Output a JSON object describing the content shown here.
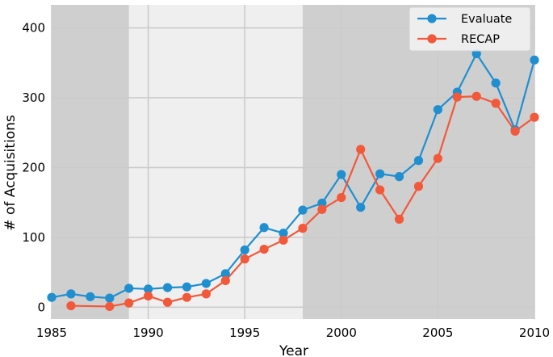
{
  "chart_data": {
    "type": "line",
    "xlabel": "Year",
    "ylabel": "# of Acquisitions",
    "xlim": [
      1985,
      2010
    ],
    "ylim": [
      -17,
      433
    ],
    "xticks": [
      1985,
      1990,
      1995,
      2000,
      2005,
      2010
    ],
    "yticks": [
      0,
      100,
      200,
      300,
      400
    ],
    "background": "#efefef",
    "grid": true,
    "grid_color": "#cbcbcb",
    "shaded_spans": [
      {
        "from": 1985,
        "to": 1989,
        "color": "#cfcfcf"
      },
      {
        "from": 1998,
        "to": 2010,
        "color": "#cfcfcf"
      }
    ],
    "legend": {
      "position": "top-right"
    },
    "series": [
      {
        "name": "Evaluate",
        "color": "#1f8fd0",
        "x": [
          1985,
          1986,
          1987,
          1988,
          1989,
          1990,
          1991,
          1992,
          1993,
          1994,
          1995,
          1996,
          1997,
          1998,
          1999,
          2000,
          2001,
          2002,
          2003,
          2004,
          2005,
          2006,
          2007,
          2008,
          2009,
          2010
        ],
        "values": [
          14,
          19,
          15,
          13,
          27,
          26,
          28,
          29,
          34,
          48,
          82,
          114,
          106,
          139,
          149,
          190,
          143,
          191,
          187,
          210,
          283,
          308,
          363,
          321,
          254,
          354
        ]
      },
      {
        "name": "RECAP",
        "color": "#f2593a",
        "x": [
          1986,
          1988,
          1989,
          1990,
          1991,
          1992,
          1993,
          1994,
          1995,
          1996,
          1997,
          1998,
          1999,
          2000,
          2001,
          2002,
          2003,
          2004,
          2005,
          2006,
          2007,
          2008,
          2009,
          2010
        ],
        "values": [
          2,
          1,
          6,
          16,
          7,
          14,
          19,
          38,
          69,
          83,
          96,
          113,
          140,
          157,
          226,
          168,
          126,
          173,
          213,
          301,
          302,
          292,
          252,
          272
        ]
      }
    ]
  }
}
